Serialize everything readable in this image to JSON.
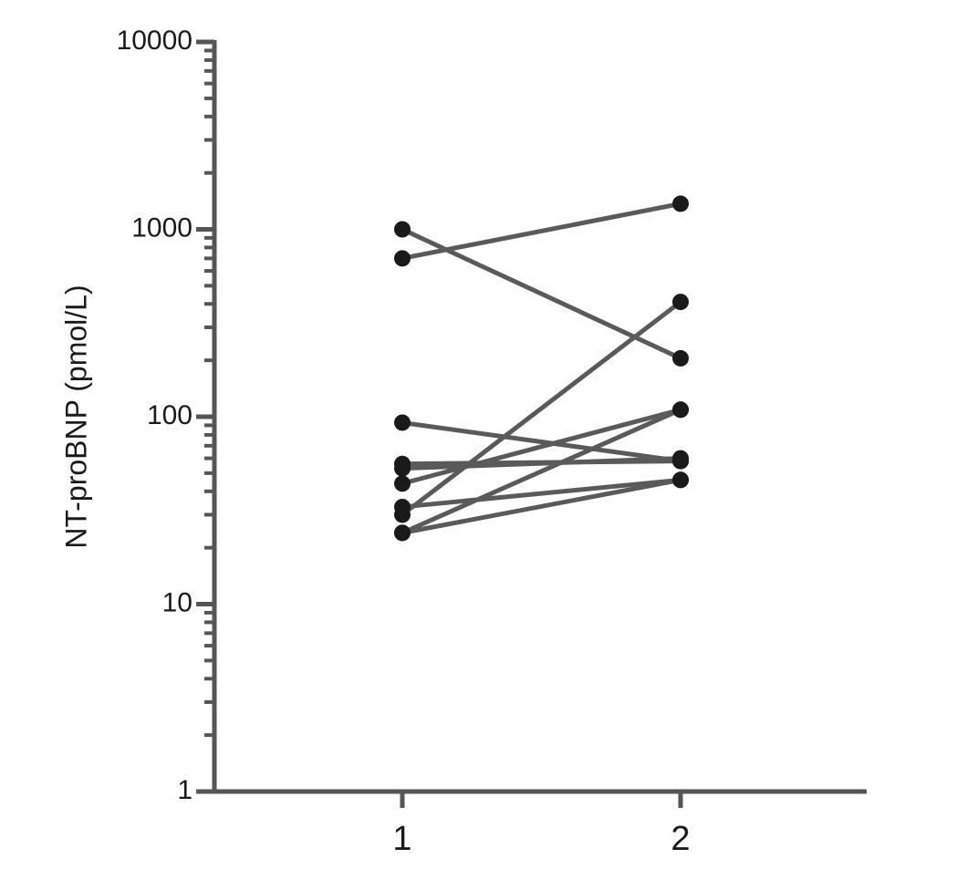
{
  "chart_data": {
    "type": "line",
    "y_label": "NT-proBNP (pmol/L)",
    "categories": [
      "1",
      "2"
    ],
    "series": [
      {
        "values": [
          1000,
          205
        ]
      },
      {
        "values": [
          700,
          1370
        ]
      },
      {
        "values": [
          93,
          58
        ]
      },
      {
        "values": [
          30,
          410
        ]
      },
      {
        "values": [
          24,
          109
        ]
      },
      {
        "values": [
          44,
          109
        ]
      },
      {
        "values": [
          33,
          46
        ]
      },
      {
        "values": [
          24,
          46
        ]
      },
      {
        "values": [
          56,
          58
        ]
      },
      {
        "values": [
          53,
          60
        ]
      }
    ],
    "line_color": "#5a5a5a",
    "marker_color": "#1a1a1a",
    "log_scale_y": true,
    "ylim": [
      1,
      10000
    ],
    "yticks": [
      1,
      10,
      100,
      1000,
      10000
    ],
    "minor_yticks": [
      2,
      3,
      4,
      5,
      6,
      7,
      8,
      9,
      20,
      30,
      40,
      50,
      60,
      70,
      80,
      90,
      200,
      300,
      400,
      500,
      600,
      700,
      800,
      900,
      2000,
      3000,
      4000,
      5000,
      6000,
      7000,
      8000,
      9000
    ]
  }
}
